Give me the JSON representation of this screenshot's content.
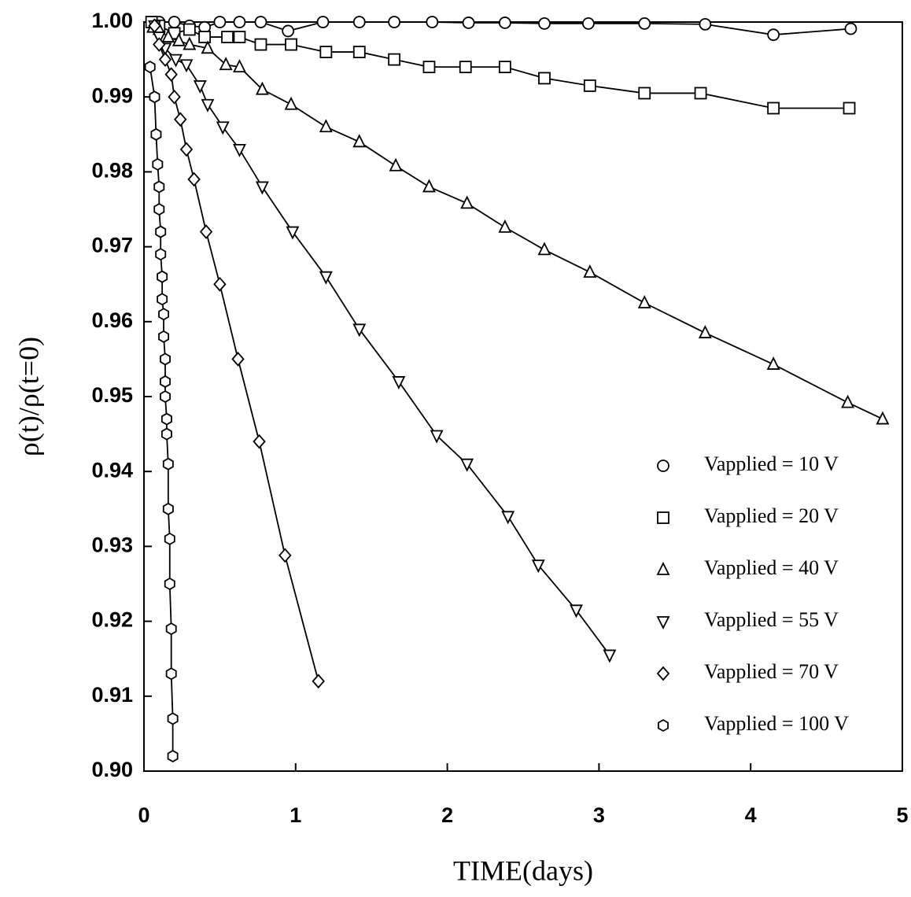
{
  "chart_data": {
    "type": "line",
    "xlabel": "TIME(days)",
    "ylabel": "ρ(t)/ρ(t=0)",
    "xlim": [
      0,
      5
    ],
    "ylim": [
      0.9,
      1.0
    ],
    "xticks": [
      0,
      1,
      2,
      3,
      4,
      5
    ],
    "yticks": [
      {
        "value": 0.9,
        "label": "0.90"
      },
      0.91,
      0.92,
      0.93,
      0.94,
      0.95,
      0.96,
      0.97,
      0.98,
      0.99,
      {
        "value": 1.0,
        "label": "1.00"
      }
    ],
    "legend": "lower right",
    "grid": false,
    "series": [
      {
        "name": "Vapplied = 10 V",
        "marker": "circle",
        "color": "#000000",
        "x": [
          0.05,
          0.1,
          0.2,
          0.3,
          0.4,
          0.5,
          0.63,
          0.77,
          0.95,
          1.18,
          1.42,
          1.65,
          1.9,
          2.14,
          2.38,
          2.64,
          2.93,
          3.3,
          3.7,
          4.15,
          4.66
        ],
        "values": [
          1.0,
          1.0,
          1.0,
          0.9995,
          0.9993,
          1.0,
          1.0,
          1.0,
          0.9988,
          1.0,
          1.0,
          1.0,
          1.0,
          0.9999,
          0.9999,
          0.9998,
          0.9998,
          0.9998,
          0.9997,
          0.9983,
          0.9991
        ]
      },
      {
        "name": "Vapplied = 20 V",
        "marker": "square",
        "color": "#000000",
        "x": [
          0.05,
          0.1,
          0.2,
          0.3,
          0.4,
          0.55,
          0.63,
          0.77,
          0.97,
          1.2,
          1.42,
          1.65,
          1.88,
          2.12,
          2.38,
          2.64,
          2.94,
          3.3,
          3.67,
          4.15,
          4.65
        ],
        "values": [
          1.0,
          0.9995,
          0.9985,
          0.999,
          0.998,
          0.998,
          0.998,
          0.997,
          0.997,
          0.996,
          0.996,
          0.995,
          0.994,
          0.994,
          0.994,
          0.9925,
          0.9915,
          0.9905,
          0.9905,
          0.9885,
          0.9885
        ]
      },
      {
        "name": "Vapplied = 40 V",
        "marker": "triangle-up",
        "color": "#000000",
        "x": [
          0.06,
          0.1,
          0.16,
          0.23,
          0.3,
          0.42,
          0.54,
          0.63,
          0.78,
          0.97,
          1.2,
          1.42,
          1.66,
          1.88,
          2.13,
          2.38,
          2.64,
          2.94,
          3.3,
          3.7,
          4.15,
          4.64,
          4.87
        ],
        "values": [
          0.9993,
          0.999,
          0.998,
          0.9975,
          0.997,
          0.9965,
          0.9943,
          0.994,
          0.991,
          0.989,
          0.986,
          0.984,
          0.9808,
          0.978,
          0.9758,
          0.9726,
          0.9696,
          0.9666,
          0.9625,
          0.9585,
          0.9543,
          0.9492,
          0.947
        ]
      },
      {
        "name": "Vapplied = 55 V",
        "marker": "triangle-down",
        "color": "#000000",
        "x": [
          0.07,
          0.1,
          0.14,
          0.21,
          0.28,
          0.37,
          0.42,
          0.52,
          0.63,
          0.78,
          0.98,
          1.2,
          1.42,
          1.68,
          1.93,
          2.13,
          2.4,
          2.6,
          2.85,
          3.07
        ],
        "values": [
          0.9995,
          0.998,
          0.9965,
          0.995,
          0.9943,
          0.9915,
          0.989,
          0.986,
          0.983,
          0.978,
          0.972,
          0.966,
          0.959,
          0.952,
          0.9448,
          0.941,
          0.934,
          0.9275,
          0.9215,
          0.9155
        ]
      },
      {
        "name": "Vapplied = 70 V",
        "marker": "diamond",
        "color": "#000000",
        "x": [
          0.07,
          0.1,
          0.14,
          0.18,
          0.2,
          0.24,
          0.28,
          0.33,
          0.41,
          0.5,
          0.62,
          0.76,
          0.93,
          1.15
        ],
        "values": [
          0.9995,
          0.997,
          0.995,
          0.993,
          0.99,
          0.987,
          0.983,
          0.979,
          0.972,
          0.965,
          0.955,
          0.944,
          0.9288,
          0.912
        ]
      },
      {
        "name": "Vapplied = 100 V",
        "marker": "hexagon",
        "color": "#000000",
        "x": [
          0.04,
          0.07,
          0.08,
          0.09,
          0.1,
          0.1,
          0.11,
          0.11,
          0.12,
          0.12,
          0.13,
          0.13,
          0.14,
          0.14,
          0.14,
          0.15,
          0.15,
          0.16,
          0.16,
          0.17,
          0.17,
          0.18,
          0.18,
          0.19,
          0.19
        ],
        "values": [
          0.994,
          0.99,
          0.985,
          0.981,
          0.978,
          0.975,
          0.972,
          0.969,
          0.966,
          0.963,
          0.961,
          0.958,
          0.955,
          0.952,
          0.95,
          0.947,
          0.945,
          0.941,
          0.935,
          0.931,
          0.925,
          0.919,
          0.913,
          0.907,
          0.902
        ]
      }
    ]
  }
}
